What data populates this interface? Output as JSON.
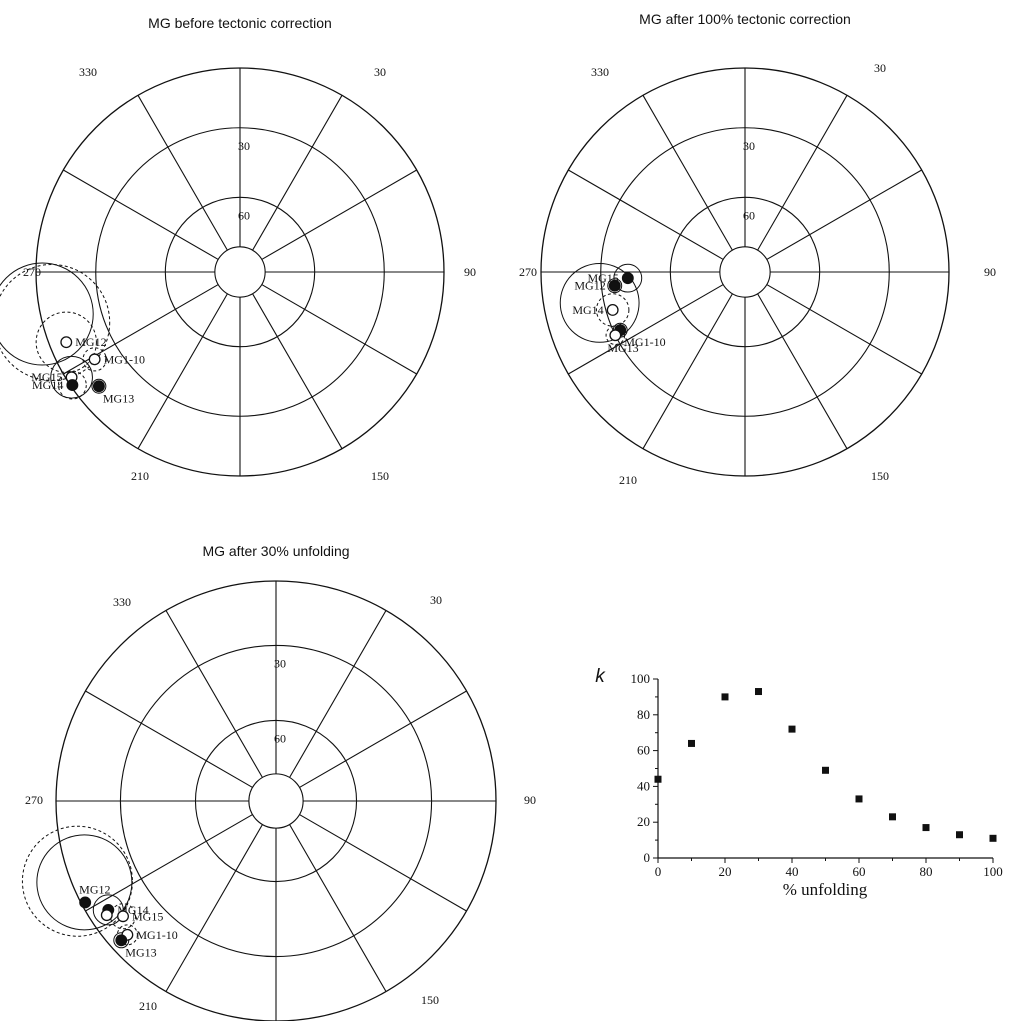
{
  "chart_data": [
    {
      "type": "polar-equal-area",
      "title": "MG before tectonic correction",
      "azimuth_labels": [
        "30",
        "90",
        "150",
        "210",
        "270",
        "330"
      ],
      "inclination_labels": [
        "30",
        "60"
      ],
      "sites": [
        {
          "name": "MG12",
          "declaration": 248,
          "inclination": 9,
          "filled": false,
          "a95": 13,
          "a95_style": "dashed",
          "label_pos": "right"
        },
        {
          "name": "MG15",
          "declaration": 238,
          "inclination": 3,
          "filled": false,
          "a95": 9,
          "a95_style": "solid",
          "label_pos": "left"
        },
        {
          "name": "MG14",
          "declaration": 236,
          "inclination": 1,
          "filled": true,
          "a95": 6,
          "a95_style": "dashed",
          "label_pos": "left"
        },
        {
          "name": "MG1-10",
          "declaration": 239,
          "inclination": 18,
          "filled": false,
          "a95": 5,
          "a95_style": "dashed",
          "label_pos": "right"
        },
        {
          "name": "MG13",
          "declaration": 231,
          "inclination": 12,
          "filled": true,
          "a95": 3,
          "a95_style": "solid",
          "label_pos": "below-right"
        },
        {
          "name": "",
          "declaration": 255,
          "inclination": 5,
          "filled": false,
          "a95": 25,
          "a95_style": "dashed",
          "label_pos": ""
        },
        {
          "name": "",
          "declaration": 258,
          "inclination": 1,
          "filled": true,
          "a95": 22,
          "a95_style": "solid",
          "label_pos": ""
        }
      ]
    },
    {
      "type": "polar-equal-area",
      "title": "MG after 100% tectonic correction",
      "azimuth_labels": [
        "30",
        "90",
        "150",
        "210",
        "270",
        "330"
      ],
      "inclination_labels": [
        "30",
        "60"
      ],
      "sites": [
        {
          "name": "MG15",
          "declaration": 267,
          "inclination": 42,
          "filled": true,
          "a95": 6,
          "a95_style": "solid",
          "label_pos": "left"
        },
        {
          "name": "MG12",
          "declaration": 264,
          "inclination": 36,
          "filled": true,
          "a95": 3,
          "a95_style": "solid",
          "label_pos": "left"
        },
        {
          "name": "MG14",
          "declaration": 254,
          "inclination": 33,
          "filled": false,
          "a95": 7,
          "a95_style": "dashed",
          "label_pos": "left"
        },
        {
          "name": "MG1-10",
          "declaration": 245,
          "inclination": 33,
          "filled": true,
          "a95": 3,
          "a95_style": "solid",
          "label_pos": "below-right"
        },
        {
          "name": "MG13",
          "declaration": 244,
          "inclination": 30,
          "filled": false,
          "a95": 4,
          "a95_style": "dashed",
          "label_pos": "below"
        },
        {
          "name": "",
          "declaration": 258,
          "inclination": 28,
          "filled": false,
          "a95": 17,
          "a95_style": "solid",
          "label_pos": ""
        }
      ]
    },
    {
      "type": "polar-equal-area",
      "title": "MG after 30% unfolding",
      "azimuth_labels": [
        "30",
        "90",
        "150",
        "210",
        "270",
        "330"
      ],
      "inclination_labels": [
        "30",
        "60"
      ],
      "sites": [
        {
          "name": "MG12",
          "declaration": 242,
          "inclination": 2,
          "filled": true,
          "a95": 2,
          "a95_style": "solid",
          "label_pos": "above"
        },
        {
          "name": "MG14",
          "declaration": 237,
          "inclination": 10,
          "filled": true,
          "a95": 6,
          "a95_style": "solid",
          "label_pos": "right"
        },
        {
          "name": "",
          "declaration": 236,
          "inclination": 8,
          "filled": false,
          "a95": 2,
          "a95_style": "solid",
          "label_pos": ""
        },
        {
          "name": "MG15",
          "declaration": 233,
          "inclination": 14,
          "filled": false,
          "a95": 5,
          "a95_style": "dashed",
          "label_pos": "right"
        },
        {
          "name": "MG1-10",
          "declaration": 228,
          "inclination": 10,
          "filled": false,
          "a95": 4,
          "a95_style": "dashed",
          "label_pos": "right"
        },
        {
          "name": "MG13",
          "declaration": 228,
          "inclination": 6,
          "filled": true,
          "a95": 3,
          "a95_style": "solid",
          "label_pos": "below-right"
        },
        {
          "name": "",
          "declaration": 247,
          "inclination": 6,
          "filled": false,
          "a95": 19,
          "a95_style": "solid",
          "label_pos": ""
        },
        {
          "name": "",
          "declaration": 248,
          "inclination": 3,
          "filled": false,
          "a95": 22,
          "a95_style": "dashed",
          "label_pos": ""
        }
      ]
    },
    {
      "type": "scatter",
      "xlabel": "% unfolding",
      "ylabel": "k",
      "xlim": [
        0,
        100
      ],
      "ylim": [
        0,
        100
      ],
      "xticks": [
        0,
        20,
        40,
        60,
        80,
        100
      ],
      "yticks": [
        0,
        20,
        40,
        60,
        80,
        100
      ],
      "points": [
        {
          "x": 0,
          "y": 44
        },
        {
          "x": 10,
          "y": 64
        },
        {
          "x": 20,
          "y": 90
        },
        {
          "x": 30,
          "y": 93
        },
        {
          "x": 40,
          "y": 72
        },
        {
          "x": 50,
          "y": 49
        },
        {
          "x": 60,
          "y": 33
        },
        {
          "x": 70,
          "y": 23
        },
        {
          "x": 80,
          "y": 17
        },
        {
          "x": 90,
          "y": 13
        },
        {
          "x": 100,
          "y": 11
        }
      ]
    }
  ]
}
